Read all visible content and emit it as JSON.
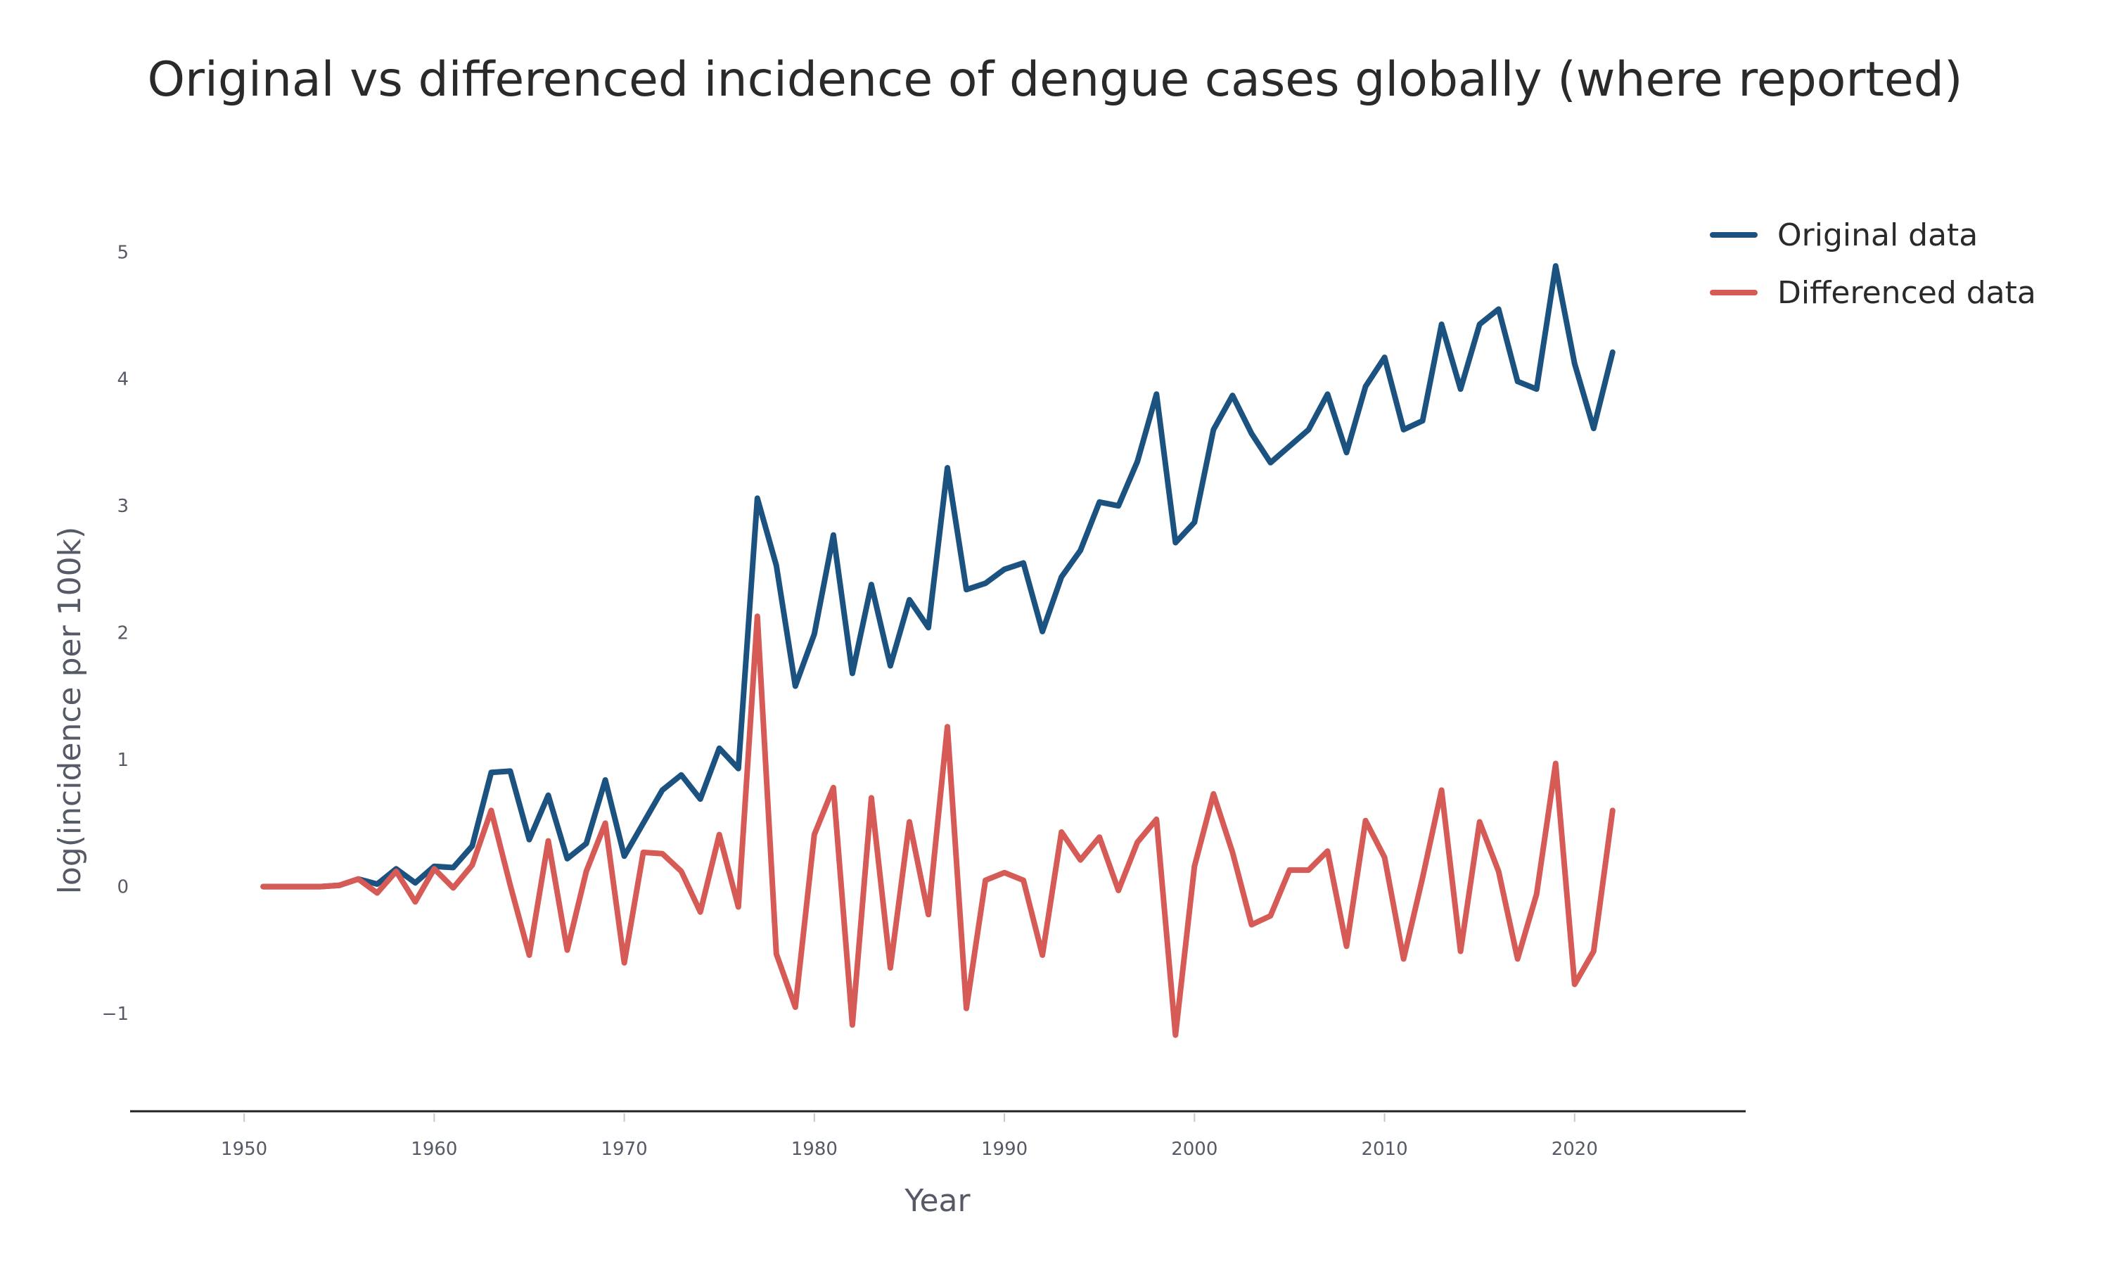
{
  "colors": {
    "original": "#1c5280",
    "differenced": "#d65a55",
    "axis": "#222222",
    "tick": "#555a66"
  },
  "chart_data": {
    "type": "line",
    "title": "Original vs differenced incidence of dengue cases globally (where reported)",
    "xlabel": "Year",
    "ylabel": "log(incidence per 100k)",
    "xlim": [
      1944,
      2029
    ],
    "ylim": [
      -1.77,
      5.6
    ],
    "x_ticks": [
      1950,
      1960,
      1970,
      1980,
      1990,
      2000,
      2010,
      2020
    ],
    "x_tick_labels": [
      "1950",
      "1960",
      "1970",
      "1980",
      "1990",
      "2000",
      "2010",
      "2020"
    ],
    "y_ticks": [
      -1,
      0,
      1,
      2,
      3,
      4,
      5
    ],
    "y_tick_labels": [
      "−1",
      "0",
      "1",
      "2",
      "3",
      "4",
      "5"
    ],
    "grid": false,
    "legend_position": "top-right",
    "x": [
      1951,
      1952,
      1953,
      1954,
      1955,
      1956,
      1957,
      1958,
      1959,
      1960,
      1961,
      1962,
      1963,
      1964,
      1965,
      1966,
      1967,
      1968,
      1969,
      1970,
      1971,
      1972,
      1973,
      1974,
      1975,
      1976,
      1977,
      1978,
      1979,
      1980,
      1981,
      1982,
      1983,
      1984,
      1985,
      1986,
      1987,
      1988,
      1989,
      1990,
      1991,
      1992,
      1993,
      1994,
      1995,
      1996,
      1997,
      1998,
      1999,
      2000,
      2001,
      2002,
      2003,
      2004,
      2005,
      2006,
      2007,
      2008,
      2009,
      2010,
      2011,
      2012,
      2013,
      2014,
      2015,
      2016,
      2017,
      2018,
      2019,
      2020,
      2021,
      2022
    ],
    "series": [
      {
        "name": "Original data",
        "values": [
          0,
          0,
          0,
          0,
          0.01,
          0.06,
          0.02,
          0.14,
          0.03,
          0.16,
          0.15,
          0.32,
          0.9,
          0.91,
          0.37,
          0.72,
          0.22,
          0.34,
          0.84,
          0.24,
          0.5,
          0.76,
          0.88,
          0.69,
          1.09,
          0.93,
          3.06,
          2.53,
          1.58,
          1.99,
          2.77,
          1.68,
          2.38,
          1.74,
          2.26,
          2.04,
          3.3,
          2.34,
          2.39,
          2.5,
          2.55,
          2.01,
          2.44,
          2.65,
          3.03,
          3.0,
          3.35,
          3.88,
          2.71,
          2.87,
          3.6,
          3.87,
          3.57,
          3.34,
          3.47,
          3.6,
          3.88,
          3.42,
          3.94,
          4.17,
          3.6,
          3.67,
          4.43,
          3.92,
          4.43,
          4.55,
          3.98,
          3.92,
          4.89,
          4.12,
          3.61,
          4.21
        ]
      },
      {
        "name": "Differenced data",
        "values": [
          0,
          0,
          0,
          0,
          0.01,
          0.06,
          -0.05,
          0.12,
          -0.12,
          0.14,
          -0.01,
          0.17,
          0.6,
          0.01,
          -0.54,
          0.36,
          -0.5,
          0.12,
          0.5,
          -0.6,
          0.27,
          0.26,
          0.12,
          -0.2,
          0.41,
          -0.16,
          2.13,
          -0.53,
          -0.95,
          0.41,
          0.78,
          -1.09,
          0.7,
          -0.64,
          0.51,
          -0.22,
          1.26,
          -0.96,
          0.05,
          0.11,
          0.05,
          -0.54,
          0.43,
          0.21,
          0.39,
          -0.03,
          0.35,
          0.53,
          -1.17,
          0.16,
          0.73,
          0.27,
          -0.3,
          -0.23,
          0.13,
          0.13,
          0.28,
          -0.47,
          0.52,
          0.23,
          -0.57,
          0.07,
          0.76,
          -0.51,
          0.51,
          0.12,
          -0.57,
          -0.06,
          0.97,
          -0.77,
          -0.51,
          0.6
        ]
      }
    ]
  }
}
